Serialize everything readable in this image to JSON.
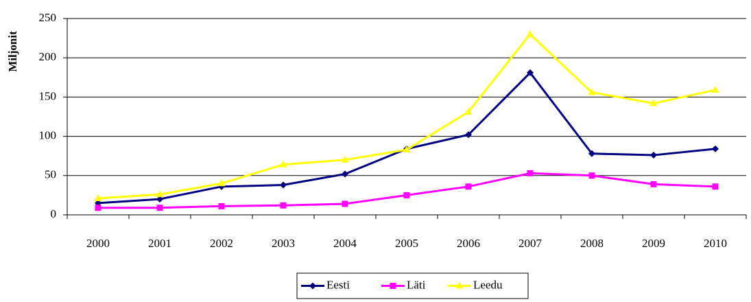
{
  "chart_data": {
    "type": "line",
    "y_label": "Miljonit",
    "categories": [
      "2000",
      "2001",
      "2002",
      "2003",
      "2004",
      "2005",
      "2006",
      "2007",
      "2008",
      "2009",
      "2010"
    ],
    "series": [
      {
        "name": "Eesti",
        "color": "#000080",
        "marker": "diamond",
        "values": [
          15,
          20,
          36,
          38,
          52,
          84,
          102,
          181,
          78,
          76,
          84
        ]
      },
      {
        "name": "Läti",
        "color": "#ff00ff",
        "marker": "square",
        "values": [
          9,
          9,
          11,
          12,
          14,
          25,
          36,
          53,
          50,
          39,
          36
        ]
      },
      {
        "name": "Leedu",
        "color": "#ffff00",
        "marker": "triangle",
        "values": [
          21,
          26,
          40,
          64,
          70,
          83,
          131,
          230,
          156,
          142,
          159
        ]
      }
    ],
    "ylim": [
      0,
      250
    ],
    "yticks": [
      0,
      50,
      100,
      150,
      200,
      250
    ],
    "grid": true,
    "legend": "bottom"
  }
}
